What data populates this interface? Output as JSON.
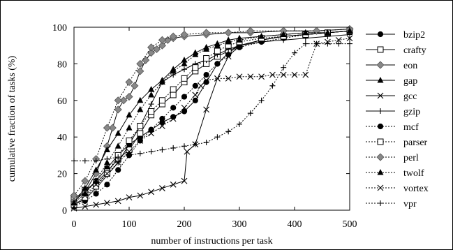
{
  "chart_data": {
    "type": "line",
    "title": "",
    "xlabel": "number of instructions per task",
    "ylabel": "cumulative fraction of tasks (%)",
    "xlim": [
      0,
      500
    ],
    "ylim": [
      0,
      100
    ],
    "xticks": [
      "0",
      "100",
      "200",
      "300",
      "400",
      "500"
    ],
    "yticks": [
      "0",
      "20",
      "40",
      "60",
      "80",
      "100"
    ],
    "grid": false,
    "legend_position": "right",
    "series": [
      {
        "name": "bzip2",
        "line": "solid",
        "marker": "circle-filled",
        "x": [
          0,
          20,
          40,
          60,
          80,
          100,
          120,
          140,
          160,
          180,
          200,
          220,
          240,
          260,
          280,
          300,
          340,
          380,
          420,
          460,
          500
        ],
        "y": [
          5,
          10,
          16,
          23,
          30,
          36,
          40,
          44,
          48,
          51,
          54,
          60,
          70,
          80,
          86,
          90,
          93,
          95,
          96,
          97,
          98
        ]
      },
      {
        "name": "crafty",
        "line": "solid",
        "marker": "square-open",
        "x": [
          0,
          20,
          40,
          60,
          80,
          100,
          120,
          140,
          160,
          180,
          200,
          220,
          240,
          260,
          280,
          300,
          340,
          380,
          420,
          460,
          500
        ],
        "y": [
          6,
          11,
          15,
          21,
          28,
          33,
          42,
          52,
          58,
          63,
          70,
          76,
          80,
          84,
          87,
          90,
          93,
          95,
          96,
          97,
          98
        ]
      },
      {
        "name": "eon",
        "line": "solid",
        "marker": "diamond-filled",
        "x": [
          0,
          20,
          40,
          60,
          70,
          80,
          90,
          100,
          110,
          120,
          130,
          140,
          150,
          160,
          170,
          180,
          200,
          240,
          280,
          320,
          380,
          440,
          500
        ],
        "y": [
          5,
          10,
          20,
          35,
          45,
          55,
          60,
          62,
          68,
          76,
          82,
          86,
          88,
          90,
          93,
          94,
          95,
          96,
          97,
          97,
          98,
          98,
          99
        ]
      },
      {
        "name": "gap",
        "line": "solid",
        "marker": "triangle-filled",
        "x": [
          0,
          20,
          40,
          60,
          80,
          100,
          120,
          140,
          160,
          180,
          200,
          220,
          240,
          260,
          280,
          300,
          340,
          380,
          420,
          460,
          500
        ],
        "y": [
          4,
          12,
          22,
          33,
          42,
          52,
          60,
          66,
          71,
          77,
          82,
          86,
          89,
          91,
          93,
          94,
          95,
          96,
          97,
          97,
          98
        ]
      },
      {
        "name": "gcc",
        "line": "solid",
        "marker": "x",
        "x": [
          0,
          20,
          40,
          60,
          80,
          100,
          120,
          140,
          160,
          180,
          200,
          205,
          220,
          240,
          260,
          280,
          300,
          340,
          380,
          420,
          460,
          500
        ],
        "y": [
          1,
          2,
          3,
          4,
          5,
          7,
          8,
          10,
          12,
          14,
          16,
          32,
          36,
          55,
          72,
          84,
          90,
          93,
          95,
          96,
          97,
          98
        ]
      },
      {
        "name": "gzip",
        "line": "solid",
        "marker": "plus",
        "x": [
          0,
          20,
          40,
          60,
          80,
          100,
          120,
          140,
          160,
          180,
          200,
          220,
          240,
          260,
          280,
          300,
          340,
          380,
          420,
          460,
          500
        ],
        "y": [
          3,
          6,
          12,
          19,
          26,
          36,
          46,
          58,
          70,
          74,
          77,
          80,
          82,
          85,
          88,
          90,
          92,
          93,
          94,
          95,
          96
        ]
      },
      {
        "name": "mcf",
        "line": "dotted",
        "marker": "circle-filled",
        "x": [
          0,
          20,
          40,
          60,
          80,
          100,
          120,
          140,
          160,
          180,
          200,
          220,
          240,
          260,
          280,
          300,
          340,
          380,
          420,
          460,
          500
        ],
        "y": [
          2,
          5,
          9,
          14,
          22,
          30,
          38,
          44,
          50,
          56,
          62,
          68,
          74,
          80,
          85,
          89,
          92,
          94,
          96,
          97,
          98
        ]
      },
      {
        "name": "parser",
        "line": "dotted",
        "marker": "square-open",
        "x": [
          0,
          20,
          40,
          60,
          80,
          100,
          120,
          140,
          160,
          180,
          200,
          220,
          240,
          260,
          280,
          300,
          340,
          380,
          420,
          460,
          500
        ],
        "y": [
          3,
          7,
          13,
          20,
          30,
          38,
          46,
          54,
          60,
          66,
          72,
          78,
          83,
          87,
          90,
          92,
          94,
          95,
          96,
          97,
          98
        ]
      },
      {
        "name": "perl",
        "line": "dotted",
        "marker": "diamond-filled",
        "x": [
          0,
          20,
          40,
          60,
          80,
          100,
          120,
          140,
          160,
          180,
          200,
          240,
          280,
          320,
          380,
          440,
          500
        ],
        "y": [
          8,
          16,
          28,
          45,
          60,
          70,
          80,
          89,
          93,
          95,
          96,
          97,
          97,
          98,
          98,
          98,
          99
        ]
      },
      {
        "name": "twolf",
        "line": "dotted",
        "marker": "triangle-filled",
        "x": [
          0,
          20,
          40,
          60,
          80,
          100,
          120,
          140,
          160,
          180,
          200,
          220,
          240,
          260,
          280,
          300,
          340,
          380,
          420,
          460,
          500
        ],
        "y": [
          4,
          9,
          16,
          26,
          35,
          45,
          55,
          63,
          70,
          76,
          80,
          85,
          88,
          90,
          92,
          93,
          95,
          96,
          97,
          97,
          98
        ]
      },
      {
        "name": "vortex",
        "line": "dotted",
        "marker": "x",
        "x": [
          0,
          20,
          40,
          60,
          80,
          100,
          120,
          140,
          160,
          180,
          200,
          220,
          230,
          240,
          260,
          280,
          300,
          320,
          340,
          360,
          380,
          400,
          420,
          440,
          460,
          480,
          500
        ],
        "y": [
          2,
          8,
          14,
          20,
          26,
          32,
          38,
          42,
          46,
          50,
          56,
          63,
          68,
          71,
          72,
          72,
          73,
          73,
          73,
          74,
          74,
          74,
          74,
          91,
          92,
          93,
          94
        ]
      },
      {
        "name": "vpr",
        "line": "dotted",
        "marker": "plus",
        "x": [
          0,
          20,
          40,
          60,
          80,
          100,
          120,
          140,
          160,
          180,
          200,
          220,
          240,
          260,
          280,
          300,
          320,
          340,
          360,
          380,
          400,
          420,
          440,
          460,
          480,
          500
        ],
        "y": [
          27,
          27,
          27,
          28,
          29,
          30,
          31,
          32,
          33,
          34,
          35,
          36,
          37,
          40,
          43,
          47,
          53,
          60,
          68,
          78,
          86,
          91,
          91,
          91,
          91,
          91
        ]
      }
    ]
  }
}
